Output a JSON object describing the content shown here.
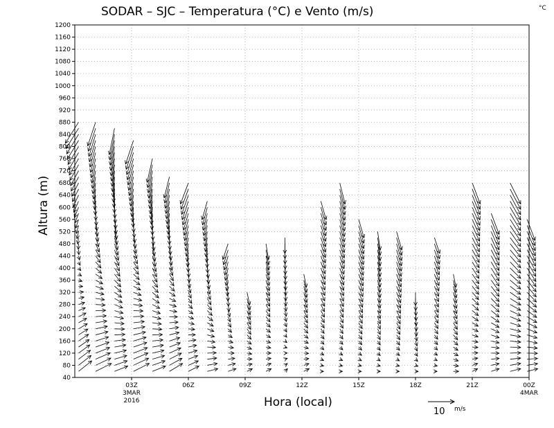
{
  "chart_data": {
    "type": "wind-barb-time-height",
    "title": "SODAR – SJC – Temperatura (°C) e Vento (m/s)",
    "corner_unit": "°C",
    "xlabel": "Hora (local)",
    "ylabel": "Altura (m)",
    "ylim": [
      40,
      1200
    ],
    "xlim_hours": [
      0,
      24
    ],
    "y_ticks": [
      40,
      80,
      120,
      160,
      200,
      240,
      280,
      320,
      360,
      400,
      440,
      480,
      520,
      560,
      600,
      640,
      680,
      720,
      760,
      800,
      840,
      880,
      920,
      960,
      1000,
      1040,
      1080,
      1120,
      1160,
      1200
    ],
    "x_ticks": [
      {
        "hour": 3,
        "label": "03Z",
        "sub1": "3MAR",
        "sub2": "2016"
      },
      {
        "hour": 6,
        "label": "06Z",
        "sub1": "",
        "sub2": ""
      },
      {
        "hour": 9,
        "label": "09Z",
        "sub1": "",
        "sub2": ""
      },
      {
        "hour": 12,
        "label": "12Z",
        "sub1": "",
        "sub2": ""
      },
      {
        "hour": 15,
        "label": "15Z",
        "sub1": "",
        "sub2": ""
      },
      {
        "hour": 18,
        "label": "18Z",
        "sub1": "",
        "sub2": ""
      },
      {
        "hour": 21,
        "label": "21Z",
        "sub1": "",
        "sub2": ""
      },
      {
        "hour": 24,
        "label": "00Z",
        "sub1": "4MAR",
        "sub2": ""
      }
    ],
    "grid": true,
    "reference_vector": {
      "value": 10,
      "label": "10",
      "unit": "m/s"
    },
    "wind_profiles": [
      {
        "hour": 0.2,
        "top": 880,
        "u_low": 5,
        "v_low": 4,
        "u_high": -5,
        "v_high": -8
      },
      {
        "hour": 1.1,
        "top": 880,
        "u_low": 6,
        "v_low": 3,
        "u_high": -3,
        "v_high": -9
      },
      {
        "hour": 2.1,
        "top": 860,
        "u_low": 5,
        "v_low": 2,
        "u_high": -2,
        "v_high": -10
      },
      {
        "hour": 3.1,
        "top": 820,
        "u_low": 6,
        "v_low": 3,
        "u_high": -3,
        "v_high": -9
      },
      {
        "hour": 4.1,
        "top": 760,
        "u_low": 5,
        "v_low": 2,
        "u_high": -2,
        "v_high": -9
      },
      {
        "hour": 5.0,
        "top": 700,
        "u_low": 5,
        "v_low": 3,
        "u_high": -2,
        "v_high": -8
      },
      {
        "hour": 6.0,
        "top": 680,
        "u_low": 4,
        "v_low": 2,
        "u_high": -3,
        "v_high": -8
      },
      {
        "hour": 7.0,
        "top": 620,
        "u_low": 4,
        "v_low": 1,
        "u_high": -2,
        "v_high": -7
      },
      {
        "hour": 8.1,
        "top": 480,
        "u_low": 3,
        "v_low": 1,
        "u_high": -2,
        "v_high": -6
      },
      {
        "hour": 9.1,
        "top": 330,
        "u_low": 2,
        "v_low": 1,
        "u_high": 1,
        "v_high": -5
      },
      {
        "hour": 10.1,
        "top": 480,
        "u_low": 2,
        "v_low": 1,
        "u_high": 1,
        "v_high": -6
      },
      {
        "hour": 11.1,
        "top": 500,
        "u_low": 1,
        "v_low": 1,
        "u_high": 0,
        "v_high": -6
      },
      {
        "hour": 12.1,
        "top": 380,
        "u_low": 2,
        "v_low": 1,
        "u_high": 1,
        "v_high": -5
      },
      {
        "hour": 13.0,
        "top": 620,
        "u_low": 1,
        "v_low": 0,
        "u_high": 2,
        "v_high": -7
      },
      {
        "hour": 14.0,
        "top": 680,
        "u_low": 1,
        "v_low": 0,
        "u_high": 2,
        "v_high": -8
      },
      {
        "hour": 15.0,
        "top": 560,
        "u_low": 1,
        "v_low": 0,
        "u_high": 2,
        "v_high": -7
      },
      {
        "hour": 16.0,
        "top": 520,
        "u_low": 1,
        "v_low": 0,
        "u_high": 1,
        "v_high": -7
      },
      {
        "hour": 17.0,
        "top": 520,
        "u_low": 1,
        "v_low": 0,
        "u_high": 2,
        "v_high": -7
      },
      {
        "hour": 18.0,
        "top": 320,
        "u_low": 1,
        "v_low": 0,
        "u_high": 0,
        "v_high": -5
      },
      {
        "hour": 19.0,
        "top": 500,
        "u_low": 1,
        "v_low": 0,
        "u_high": 2,
        "v_high": -6
      },
      {
        "hour": 20.0,
        "top": 380,
        "u_low": 2,
        "v_low": 0,
        "u_high": 1,
        "v_high": -5
      },
      {
        "hour": 21.0,
        "top": 680,
        "u_low": 2,
        "v_low": 1,
        "u_high": 3,
        "v_high": -8
      },
      {
        "hour": 22.0,
        "top": 580,
        "u_low": 3,
        "v_low": 1,
        "u_high": 3,
        "v_high": -8
      },
      {
        "hour": 23.0,
        "top": 680,
        "u_low": 4,
        "v_low": 1,
        "u_high": 4,
        "v_high": -8
      },
      {
        "hour": 23.9,
        "top": 560,
        "u_low": 4,
        "v_low": 1,
        "u_high": 3,
        "v_high": -8
      }
    ]
  }
}
